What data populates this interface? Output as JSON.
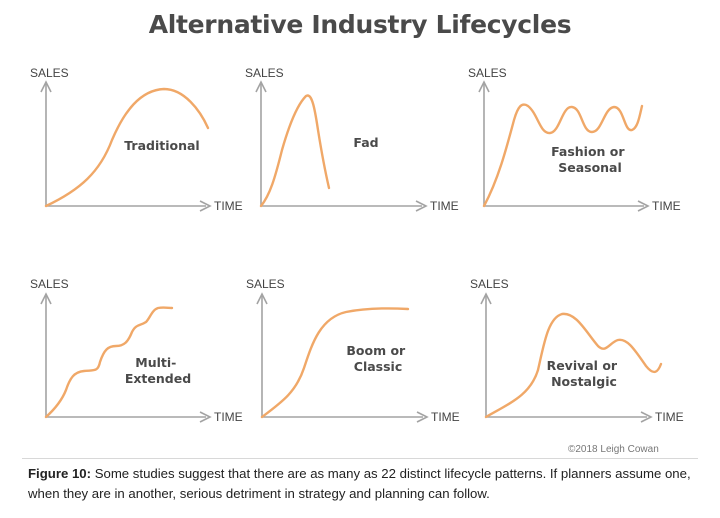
{
  "title": "Alternative Industry Lifecycles",
  "axis_labels": {
    "y": "SALES",
    "x": "TIME"
  },
  "panels": [
    {
      "label_lines": [
        "Traditional"
      ]
    },
    {
      "label_lines": [
        "Fad"
      ]
    },
    {
      "label_lines": [
        "Fashion or",
        "Seasonal"
      ]
    },
    {
      "label_lines": [
        "Multi-",
        "Extended"
      ]
    },
    {
      "label_lines": [
        "Boom or",
        "Classic"
      ]
    },
    {
      "label_lines": [
        "Revival or",
        "Nostalgic"
      ]
    }
  ],
  "copyright": "©2018 Leigh Cowan",
  "caption": {
    "bold": "Figure 10:",
    "text": " Some studies suggest that there are as many as 22 distinct lifecycle patterns. If planners assume one, when they are in another, serious detriment in strategy and planning can follow."
  },
  "colors": {
    "curve": "#f0a868",
    "axis": "#a3a3a3",
    "title": "#4a4a4a"
  }
}
